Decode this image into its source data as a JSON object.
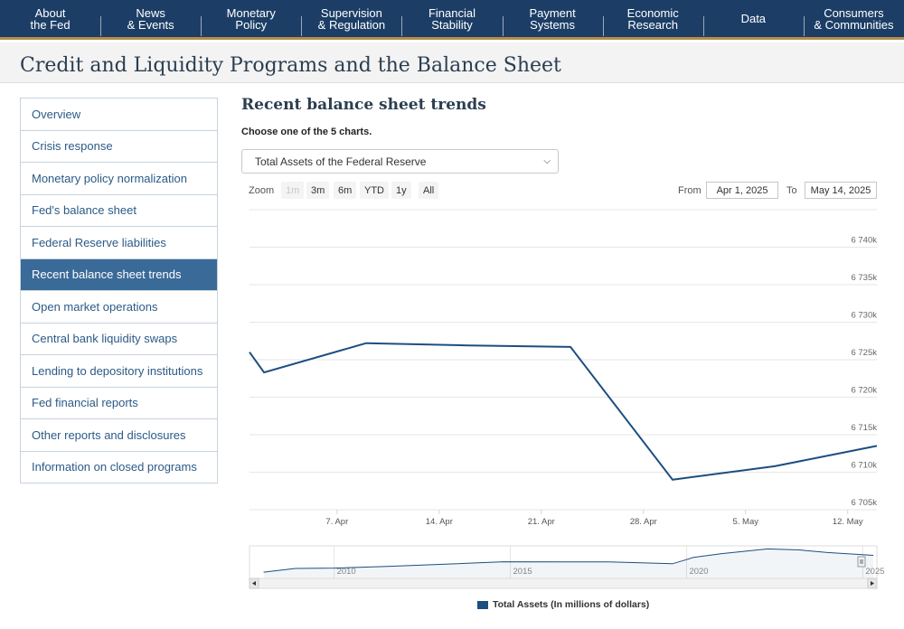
{
  "nav": [
    {
      "line1": "About",
      "line2": "the Fed"
    },
    {
      "line1": "News",
      "line2": "& Events"
    },
    {
      "line1": "Monetary",
      "line2": "Policy"
    },
    {
      "line1": "Supervision",
      "line2": "& Regulation"
    },
    {
      "line1": "Financial",
      "line2": "Stability"
    },
    {
      "line1": "Payment",
      "line2": "Systems"
    },
    {
      "line1": "Economic",
      "line2": "Research"
    },
    {
      "line1": "Data",
      "line2": ""
    },
    {
      "line1": "Consumers",
      "line2": "& Communities"
    }
  ],
  "page_title": "Credit and Liquidity Programs and the Balance Sheet",
  "sidebar": [
    {
      "label": "Overview",
      "active": false
    },
    {
      "label": "Crisis response",
      "active": false
    },
    {
      "label": "Monetary policy normalization",
      "active": false
    },
    {
      "label": "Fed's balance sheet",
      "active": false
    },
    {
      "label": "Federal Reserve liabilities",
      "active": false
    },
    {
      "label": "Recent balance sheet trends",
      "active": true
    },
    {
      "label": "Open market operations",
      "active": false
    },
    {
      "label": "Central bank liquidity swaps",
      "active": false
    },
    {
      "label": "Lending to depository institutions",
      "active": false
    },
    {
      "label": "Fed financial reports",
      "active": false
    },
    {
      "label": "Other reports and disclosures",
      "active": false
    },
    {
      "label": "Information on closed programs",
      "active": false
    }
  ],
  "main": {
    "section_title": "Recent balance sheet trends",
    "choose_label": "Choose one of the 5 charts.",
    "select_value": "Total Assets of the Federal Reserve"
  },
  "range_selector": {
    "zoom_label": "Zoom",
    "buttons": [
      "1m",
      "3m",
      "6m",
      "YTD",
      "1y",
      "All"
    ],
    "disabled_button": "1m",
    "from_label": "From",
    "from_value": "Apr 1, 2025",
    "to_label": "To",
    "to_value": "May 14, 2025"
  },
  "chart_data": {
    "type": "line",
    "title": "",
    "xlabel": "",
    "ylabel": "",
    "x_ticks": [
      "7. Apr",
      "14. Apr",
      "21. Apr",
      "28. Apr",
      "5. May",
      "12. May"
    ],
    "y_ticks": [
      "6 705k",
      "6 710k",
      "6 715k",
      "6 720k",
      "6 725k",
      "6 730k",
      "6 735k",
      "6 740k"
    ],
    "ylim": [
      6705000,
      6745000
    ],
    "xlim": [
      "2025-04-01",
      "2025-05-14"
    ],
    "grid": true,
    "series": [
      {
        "name": "Total Assets (In millions of dollars)",
        "color": "#1c4e80",
        "x": [
          "2025-04-01",
          "2025-04-02",
          "2025-04-09",
          "2025-04-16",
          "2025-04-23",
          "2025-04-30",
          "2025-05-07",
          "2025-05-14"
        ],
        "values": [
          6726000,
          6723300,
          6727200,
          6726900,
          6726700,
          6709000,
          6710800,
          6713500
        ]
      }
    ],
    "navigator": {
      "x_ticks": [
        "2010",
        "2015",
        "2020",
        "2025"
      ],
      "series": [
        {
          "year": 2008.0,
          "value": 900000
        },
        {
          "year": 2008.9,
          "value": 2200000
        },
        {
          "year": 2010.0,
          "value": 2300000
        },
        {
          "year": 2011.5,
          "value": 2900000
        },
        {
          "year": 2013.0,
          "value": 3600000
        },
        {
          "year": 2014.8,
          "value": 4500000
        },
        {
          "year": 2017.8,
          "value": 4450000
        },
        {
          "year": 2019.6,
          "value": 3800000
        },
        {
          "year": 2020.2,
          "value": 6000000
        },
        {
          "year": 2021.0,
          "value": 7300000
        },
        {
          "year": 2022.3,
          "value": 8950000
        },
        {
          "year": 2023.2,
          "value": 8600000
        },
        {
          "year": 2024.0,
          "value": 7700000
        },
        {
          "year": 2025.3,
          "value": 6710000
        }
      ]
    },
    "legend": "bottom-center"
  }
}
